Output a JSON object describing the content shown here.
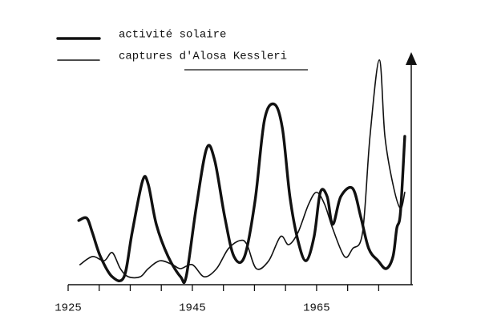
{
  "chart_data": {
    "type": "line",
    "xlim": [
      1925,
      1980.5
    ],
    "ylim": [
      0,
      100
    ],
    "xticks": [
      1925,
      1945,
      1965
    ],
    "minor_xticks": [
      1930,
      1935,
      1940,
      1950,
      1955,
      1960,
      1970,
      1975
    ],
    "legend": "top-left",
    "series": [
      {
        "name": "activité solaire",
        "color": "#111111",
        "width": "thick",
        "x": [
          1926.7,
          1928.0,
          1928.9,
          1930.2,
          1932.1,
          1934.0,
          1935.3,
          1937.0,
          1937.9,
          1939.2,
          1941.1,
          1943.1,
          1944.0,
          1945.6,
          1947.3,
          1948.6,
          1950.2,
          1951.7,
          1953.4,
          1955.1,
          1956.6,
          1958.2,
          1959.5,
          1960.7,
          1962.0,
          1963.3,
          1964.6,
          1965.6,
          1966.7,
          1967.6,
          1968.9,
          1970.8,
          1972.1,
          1973.4,
          1974.9,
          1976.2,
          1977.3,
          1977.9,
          1978.5,
          1979.2
        ],
        "values": [
          27.6,
          28.6,
          22.4,
          12.1,
          3.4,
          3.4,
          22.4,
          44.8,
          43.1,
          25.9,
          12.1,
          3.4,
          3.4,
          32.8,
          58.6,
          53.4,
          29.3,
          12.1,
          12.1,
          36.2,
          70.7,
          77.6,
          67.2,
          37.9,
          19.0,
          10.3,
          20.7,
          39.7,
          37.9,
          25.9,
          37.9,
          41.4,
          29.3,
          15.5,
          10.3,
          6.9,
          12.1,
          24.1,
          31.0,
          63.8
        ]
      },
      {
        "name": "captures d'Alosa Kessleri",
        "color": "#111111",
        "width": "thin",
        "x": [
          1926.9,
          1928.9,
          1930.8,
          1932.1,
          1933.4,
          1934.7,
          1936.6,
          1937.9,
          1939.8,
          1941.8,
          1943.1,
          1945.0,
          1946.9,
          1948.9,
          1950.8,
          1952.7,
          1953.8,
          1955.3,
          1957.3,
          1959.2,
          1960.5,
          1962.0,
          1963.7,
          1965.0,
          1966.3,
          1967.6,
          1969.5,
          1970.8,
          1972.4,
          1973.6,
          1975.1,
          1976.0,
          1977.3,
          1978.5,
          1979.2
        ],
        "values": [
          8.6,
          12.1,
          10.3,
          13.8,
          6.9,
          3.4,
          3.4,
          6.9,
          10.3,
          8.6,
          6.9,
          8.6,
          3.4,
          6.9,
          15.5,
          19.0,
          17.2,
          6.9,
          10.3,
          20.7,
          17.2,
          22.4,
          34.5,
          39.7,
          34.5,
          24.1,
          12.1,
          15.5,
          22.4,
          63.8,
          96.6,
          63.8,
          43.1,
          32.8,
          39.7
        ]
      }
    ]
  }
}
